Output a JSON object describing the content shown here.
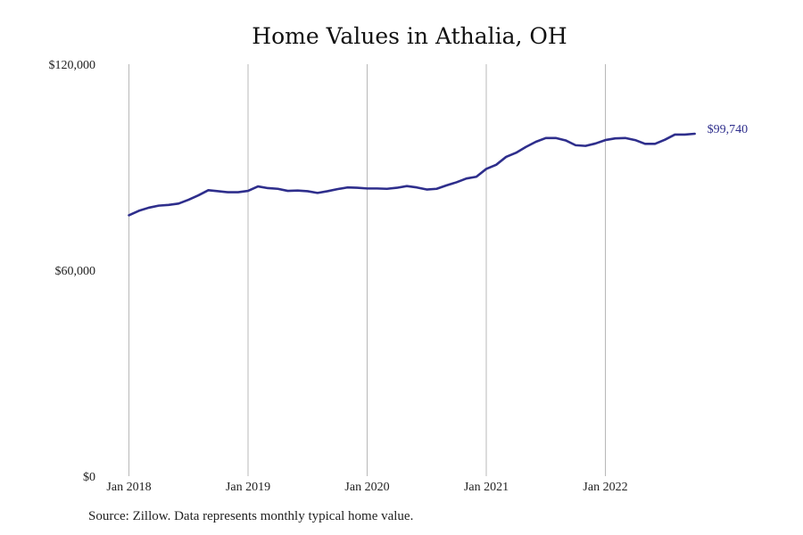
{
  "chart_data": {
    "type": "line",
    "title": "Home Values in Athalia, OH",
    "xlabel": "",
    "ylabel": "",
    "ylim": [
      0,
      120000
    ],
    "y_ticks": [
      "$0",
      "$60,000",
      "$120,000"
    ],
    "y_tick_values": [
      0,
      60000,
      120000
    ],
    "x_ticks": [
      "Jan 2018",
      "Jan 2019",
      "Jan 2020",
      "Jan 2021",
      "Jan 2022"
    ],
    "x_tick_values": [
      "2018-01",
      "2019-01",
      "2020-01",
      "2021-01",
      "2022-01"
    ],
    "grid": "vertical lines at x ticks",
    "line_color": "#2e2e8c",
    "end_label": "$99,740",
    "series": [
      {
        "x": [
          "2018-01",
          "2018-02",
          "2018-03",
          "2018-04",
          "2018-05",
          "2018-06",
          "2018-07",
          "2018-08",
          "2018-09",
          "2018-10",
          "2018-11",
          "2018-12",
          "2019-01",
          "2019-02",
          "2019-03",
          "2019-04",
          "2019-05",
          "2019-06",
          "2019-07",
          "2019-08",
          "2019-09",
          "2019-10",
          "2019-11",
          "2019-12",
          "2020-01",
          "2020-02",
          "2020-03",
          "2020-04",
          "2020-05",
          "2020-06",
          "2020-07",
          "2020-08",
          "2020-09",
          "2020-10",
          "2020-11",
          "2020-12",
          "2021-01",
          "2021-02",
          "2021-03",
          "2021-04",
          "2021-05",
          "2021-06",
          "2021-07",
          "2021-08",
          "2021-09",
          "2021-10",
          "2021-11",
          "2021-12",
          "2022-01",
          "2022-02",
          "2022-03",
          "2022-04",
          "2022-05",
          "2022-06",
          "2022-07",
          "2022-08",
          "2022-09",
          "2022-10"
        ],
        "values": [
          76000,
          77300,
          78200,
          78800,
          79000,
          79400,
          80500,
          81800,
          83300,
          83000,
          82700,
          82700,
          83100,
          84400,
          83900,
          83700,
          83100,
          83200,
          83000,
          82500,
          83000,
          83600,
          84100,
          84000,
          83800,
          83800,
          83700,
          84000,
          84500,
          84100,
          83500,
          83700,
          84700,
          85600,
          86700,
          87200,
          89500,
          90700,
          93000,
          94200,
          95900,
          97400,
          98500,
          98500,
          97800,
          96400,
          96200,
          96900,
          97900,
          98400,
          98500,
          97900,
          96800,
          96800,
          98000,
          99500,
          99500,
          99740
        ]
      }
    ]
  },
  "source_note": "Source: Zillow. Data represents monthly typical home value."
}
